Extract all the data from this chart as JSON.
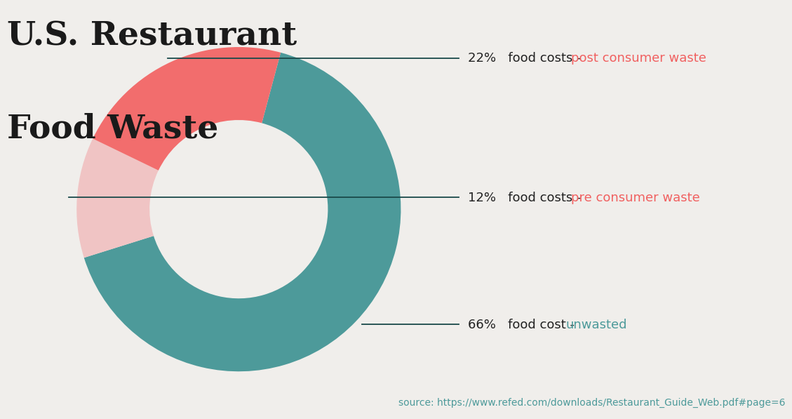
{
  "title_line1": "U.S. Restaurant",
  "title_line2": "Food Waste",
  "title_color": "#1a1a1a",
  "title_fontsize": 34,
  "background_color": "#f0eeeb",
  "slices": [
    66,
    12,
    22
  ],
  "slice_colors": [
    "#4d9a9a",
    "#f0c4c4",
    "#f26d6d"
  ],
  "slice_labels": [
    "food cost - ",
    "food costs - ",
    "food costs - "
  ],
  "slice_colored_labels": [
    "unwasted",
    "pre consumer waste",
    "post consumer waste"
  ],
  "slice_colored_label_colors": [
    "#4d9a9a",
    "#f06060",
    "#f06060"
  ],
  "slice_percentages": [
    "66%",
    "12%",
    "22%"
  ],
  "annotation_color": "#222222",
  "line_color": "#1a4a4a",
  "source_text": "source: https://www.refed.com/downloads/Restaurant_Guide_Web.pdf#page=6",
  "source_color": "#4d9a9a",
  "source_fontsize": 10,
  "donut_width": 0.45
}
